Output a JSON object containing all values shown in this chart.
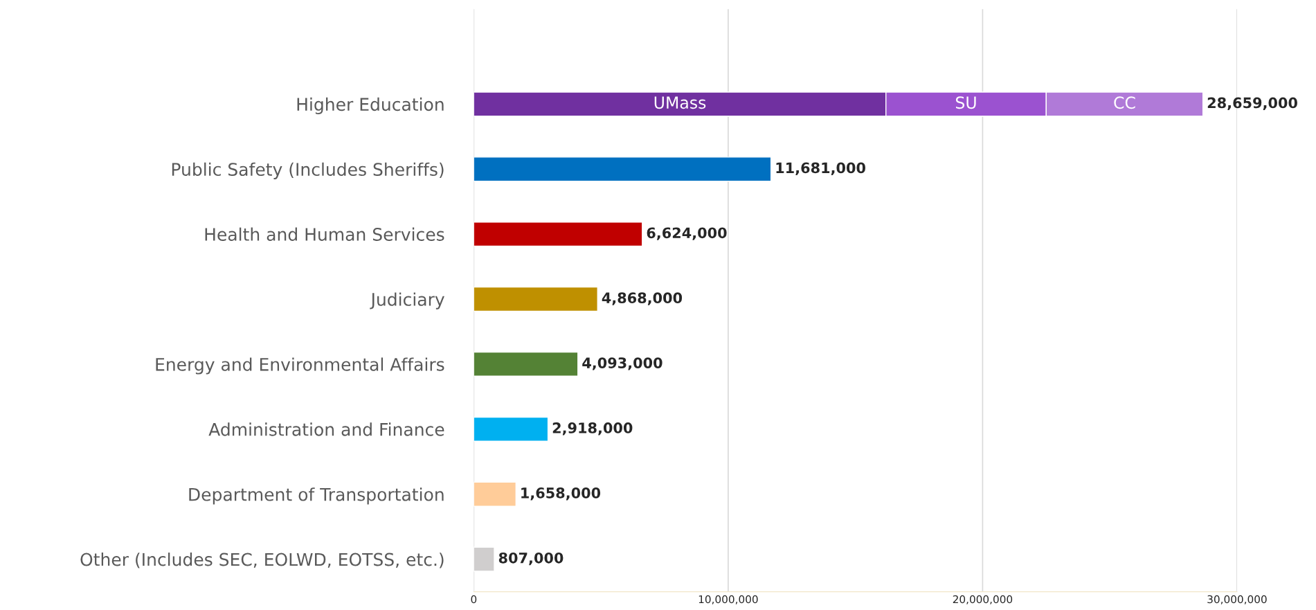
{
  "chart_data": {
    "type": "bar",
    "orientation": "horizontal",
    "stacked": true,
    "categories": [
      "Higher Education",
      "Public Safety (Includes Sheriffs)",
      "Health and Human Services",
      "Judiciary",
      "Energy and Environmental Affairs",
      "Administration and Finance",
      "Department of Transportation",
      "Other (Includes SEC, EOLWD, EOTSS, etc.)"
    ],
    "series": [
      {
        "colors": [
          "#7030a0",
          "#0070c0",
          "#c00000",
          "#bf9000",
          "#548235",
          "#00b0f0",
          "#ffcc99",
          "#d0cece"
        ],
        "values": [
          null,
          11681000,
          6624000,
          4868000,
          4093000,
          2918000,
          1658000,
          807000
        ]
      },
      {
        "name": "UMass",
        "color": "#7030a0",
        "values": [
          16200000,
          null,
          null,
          null,
          null,
          null,
          null,
          null
        ]
      },
      {
        "name": "SU",
        "color": "#9b52d0",
        "values": [
          6300000,
          null,
          null,
          null,
          null,
          null,
          null,
          null
        ]
      },
      {
        "name": "CC",
        "color": "#b07ad8",
        "values": [
          6159000,
          null,
          null,
          null,
          null,
          null,
          null,
          null
        ]
      }
    ],
    "totals": [
      "28,659,000",
      "11,681,000",
      "6,624,000",
      "4,868,000",
      "4,093,000",
      "2,918,000",
      "1,658,000",
      "807,000"
    ],
    "xlim": [
      0,
      30000000
    ],
    "xticks": [
      0,
      {
        "value": 10000000,
        "label": "10,000,000"
      },
      {
        "value": 20000000,
        "label": "20,000,000"
      },
      {
        "value": 30000000,
        "label": "30,000,000"
      }
    ],
    "grid": "x",
    "legend": false
  }
}
